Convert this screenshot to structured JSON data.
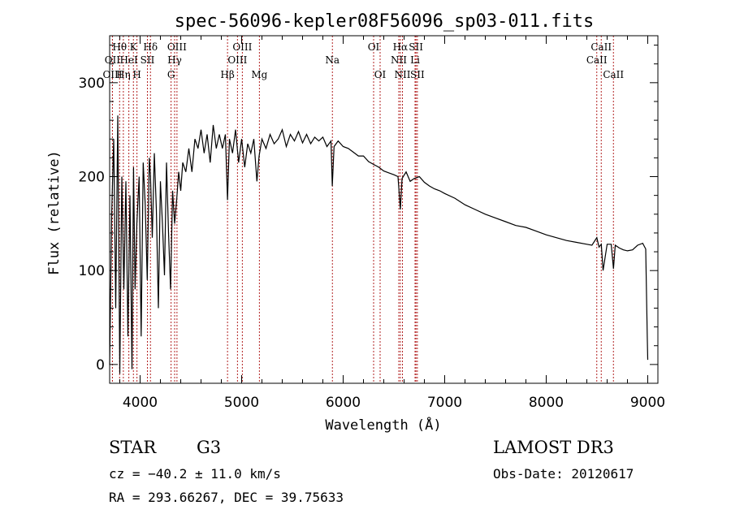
{
  "chart_data": {
    "type": "line",
    "title": "spec-56096-kepler08F56096_sp03-011.fits",
    "xlabel": "Wavelength (Å)",
    "ylabel": "Flux (relative)",
    "xlim": [
      3700,
      9100
    ],
    "ylim": [
      -20,
      350
    ],
    "xticks": [
      4000,
      5000,
      6000,
      7000,
      8000,
      9000
    ],
    "yticks": [
      0,
      100,
      200,
      300
    ],
    "series": [
      {
        "name": "flux",
        "x": [
          3700,
          3720,
          3740,
          3760,
          3780,
          3800,
          3820,
          3840,
          3860,
          3880,
          3900,
          3920,
          3935,
          3950,
          3968,
          3990,
          4010,
          4030,
          4050,
          4070,
          4090,
          4102,
          4120,
          4140,
          4160,
          4180,
          4200,
          4220,
          4240,
          4260,
          4280,
          4300,
          4320,
          4340,
          4360,
          4380,
          4400,
          4420,
          4450,
          4480,
          4510,
          4540,
          4570,
          4600,
          4630,
          4660,
          4690,
          4720,
          4750,
          4780,
          4810,
          4840,
          4861,
          4880,
          4910,
          4940,
          4970,
          5000,
          5030,
          5060,
          5090,
          5120,
          5150,
          5172,
          5200,
          5240,
          5280,
          5320,
          5360,
          5400,
          5440,
          5480,
          5520,
          5560,
          5600,
          5640,
          5680,
          5720,
          5760,
          5800,
          5840,
          5880,
          5893,
          5910,
          5950,
          6000,
          6050,
          6100,
          6150,
          6200,
          6250,
          6300,
          6350,
          6400,
          6450,
          6500,
          6540,
          6563,
          6580,
          6620,
          6660,
          6700,
          6750,
          6800,
          6850,
          6900,
          6950,
          7000,
          7100,
          7200,
          7300,
          7400,
          7500,
          7600,
          7700,
          7800,
          7900,
          8000,
          8100,
          8200,
          8300,
          8400,
          8450,
          8498,
          8520,
          8542,
          8560,
          8600,
          8640,
          8662,
          8680,
          8720,
          8760,
          8800,
          8850,
          8900,
          8950,
          8980,
          8995,
          9000
        ],
        "values": [
          0,
          160,
          240,
          60,
          265,
          -10,
          200,
          80,
          195,
          30,
          180,
          -5,
          210,
          80,
          150,
          200,
          30,
          215,
          170,
          90,
          220,
          200,
          135,
          225,
          165,
          60,
          195,
          150,
          95,
          215,
          140,
          80,
          185,
          150,
          175,
          205,
          185,
          215,
          205,
          230,
          205,
          240,
          230,
          250,
          225,
          245,
          215,
          255,
          230,
          245,
          230,
          245,
          175,
          240,
          225,
          250,
          215,
          240,
          210,
          235,
          225,
          240,
          195,
          222,
          240,
          230,
          245,
          235,
          240,
          250,
          232,
          245,
          238,
          248,
          236,
          245,
          235,
          242,
          238,
          242,
          232,
          238,
          190,
          232,
          238,
          232,
          230,
          226,
          222,
          222,
          216,
          213,
          210,
          206,
          204,
          202,
          200,
          165,
          198,
          205,
          195,
          198,
          200,
          194,
          190,
          187,
          185,
          182,
          177,
          170,
          165,
          160,
          156,
          152,
          148,
          146,
          142,
          138,
          135,
          132,
          130,
          128,
          127,
          135,
          125,
          128,
          100,
          128,
          128,
          102,
          127,
          124,
          122,
          121,
          122,
          127,
          129,
          123,
          30,
          5
        ]
      }
    ],
    "spectral_lines": [
      {
        "name": "Hθ",
        "x": 3798,
        "row": 1
      },
      {
        "name": "OII",
        "x": 3727,
        "row": 2
      },
      {
        "name": "OIII",
        "x": 3728,
        "row": 3
      },
      {
        "name": "K",
        "x": 3934,
        "row": 1
      },
      {
        "name": "HeI",
        "x": 3889,
        "row": 2
      },
      {
        "name": "Hη",
        "x": 3835,
        "row": 3
      },
      {
        "name": "H",
        "x": 3969,
        "row": 3
      },
      {
        "name": "SII",
        "x": 4072,
        "row": 2
      },
      {
        "name": "Hδ",
        "x": 4102,
        "row": 1
      },
      {
        "name": "OIII",
        "x": 4363,
        "row": 1
      },
      {
        "name": "Hγ",
        "x": 4340,
        "row": 2
      },
      {
        "name": "G",
        "x": 4305,
        "row": 3
      },
      {
        "name": "Hβ",
        "x": 4861,
        "row": 3
      },
      {
        "name": "OIII",
        "x": 5007,
        "row": 1
      },
      {
        "name": "OIII",
        "x": 4959,
        "row": 2
      },
      {
        "name": "Mg",
        "x": 5175,
        "row": 3
      },
      {
        "name": "Na",
        "x": 5894,
        "row": 2
      },
      {
        "name": "OI",
        "x": 6300,
        "row": 1
      },
      {
        "name": "OI",
        "x": 6364,
        "row": 3
      },
      {
        "name": "Hα",
        "x": 6563,
        "row": 1
      },
      {
        "name": "NII",
        "x": 6548,
        "row": 2
      },
      {
        "name": "NII",
        "x": 6584,
        "row": 3
      },
      {
        "name": "SII",
        "x": 6717,
        "row": 1
      },
      {
        "name": "Li",
        "x": 6708,
        "row": 2
      },
      {
        "name": "SII",
        "x": 6731,
        "row": 3
      },
      {
        "name": "CaII",
        "x": 8542,
        "row": 1
      },
      {
        "name": "CaII",
        "x": 8498,
        "row": 2
      },
      {
        "name": "CaII",
        "x": 8662,
        "row": 3
      }
    ]
  },
  "info": {
    "object_class": "STAR",
    "subclass": "G3",
    "survey": "LAMOST DR3",
    "redshift": "cz = −40.2 ± 11.0 km/s",
    "obs_date": "Obs-Date: 20120617",
    "coords": "RA = 293.66267, DEC =  39.75633"
  },
  "colors": {
    "line_marker": "#b22222",
    "spectrum": "#000000",
    "axes": "#000000"
  }
}
